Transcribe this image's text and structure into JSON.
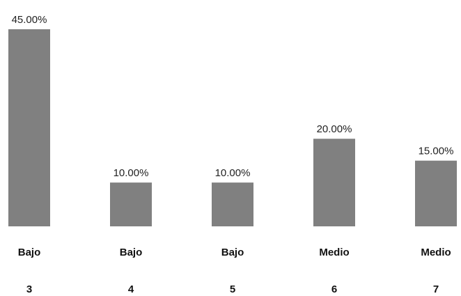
{
  "chart_data": {
    "type": "bar",
    "categories": [
      {
        "level": "Bajo",
        "score": "3"
      },
      {
        "level": "Bajo",
        "score": "4"
      },
      {
        "level": "Bajo",
        "score": "5"
      },
      {
        "level": "Medio",
        "score": "6"
      },
      {
        "level": "Medio",
        "score": "7"
      }
    ],
    "values": [
      45.0,
      10.0,
      10.0,
      20.0,
      15.0
    ],
    "value_labels": [
      "45.00%",
      "10.00%",
      "10.00%",
      "20.00%",
      "15.00%"
    ],
    "title": "",
    "xlabel": "",
    "ylabel": "",
    "ylim": [
      0,
      45
    ],
    "grid": false,
    "legend": "none",
    "bar_color": "#808080"
  }
}
